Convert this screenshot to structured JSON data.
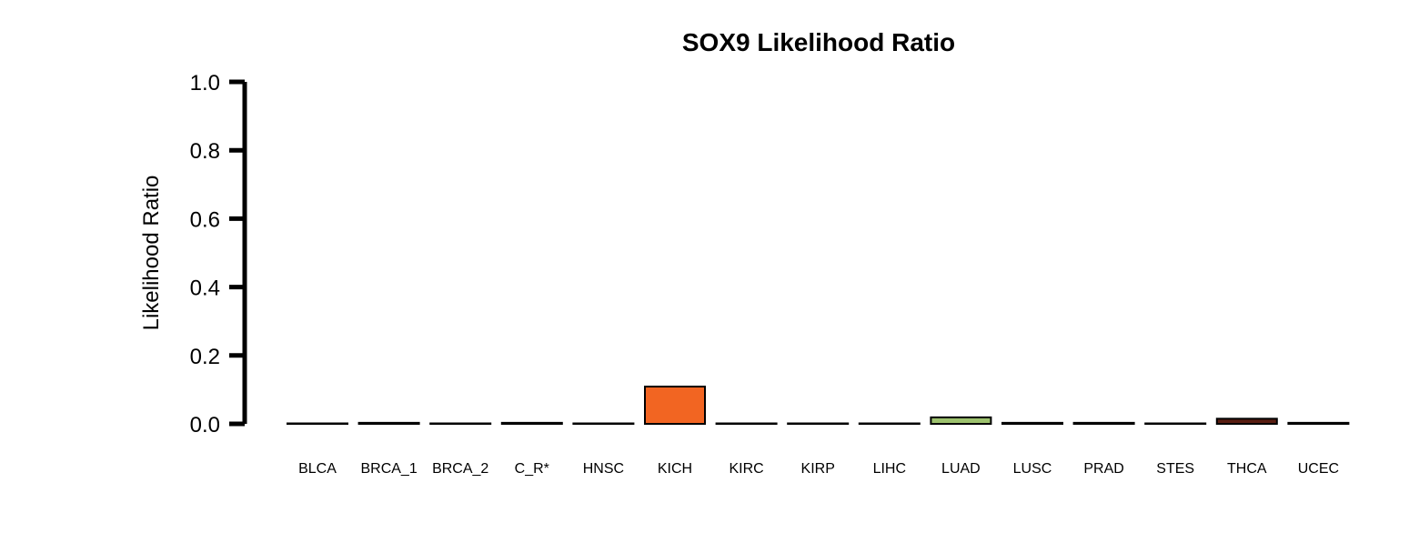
{
  "chart_data": {
    "type": "bar",
    "title": "SOX9 Likelihood Ratio",
    "ylabel": "Likelihood Ratio",
    "xlabel": "",
    "ylim": [
      0,
      1.0
    ],
    "yticks": [
      "0.0",
      "0.2",
      "0.4",
      "0.6",
      "0.8",
      "1.0"
    ],
    "ytick_values": [
      0,
      0.2,
      0.4,
      0.6,
      0.8,
      1.0
    ],
    "categories": [
      "BLCA",
      "BRCA_1",
      "BRCA_2",
      "C_R*",
      "HNSC",
      "KICH",
      "KIRC",
      "KIRP",
      "LIHC",
      "LUAD",
      "LUSC",
      "PRAD",
      "STES",
      "THCA",
      "UCEC"
    ],
    "values": [
      0.001,
      0.003,
      0.001,
      0.003,
      0.001,
      0.109,
      0.001,
      0.001,
      0.001,
      0.019,
      0.003,
      0.003,
      0.001,
      0.015,
      0.003
    ],
    "colors": [
      "#000000",
      "#000000",
      "#000000",
      "#000000",
      "#000000",
      "#F26522",
      "#000000",
      "#000000",
      "#000000",
      "#9DC26E",
      "#000000",
      "#000000",
      "#000000",
      "#5A1E12",
      "#000000"
    ],
    "grid": false,
    "legend": "none"
  }
}
